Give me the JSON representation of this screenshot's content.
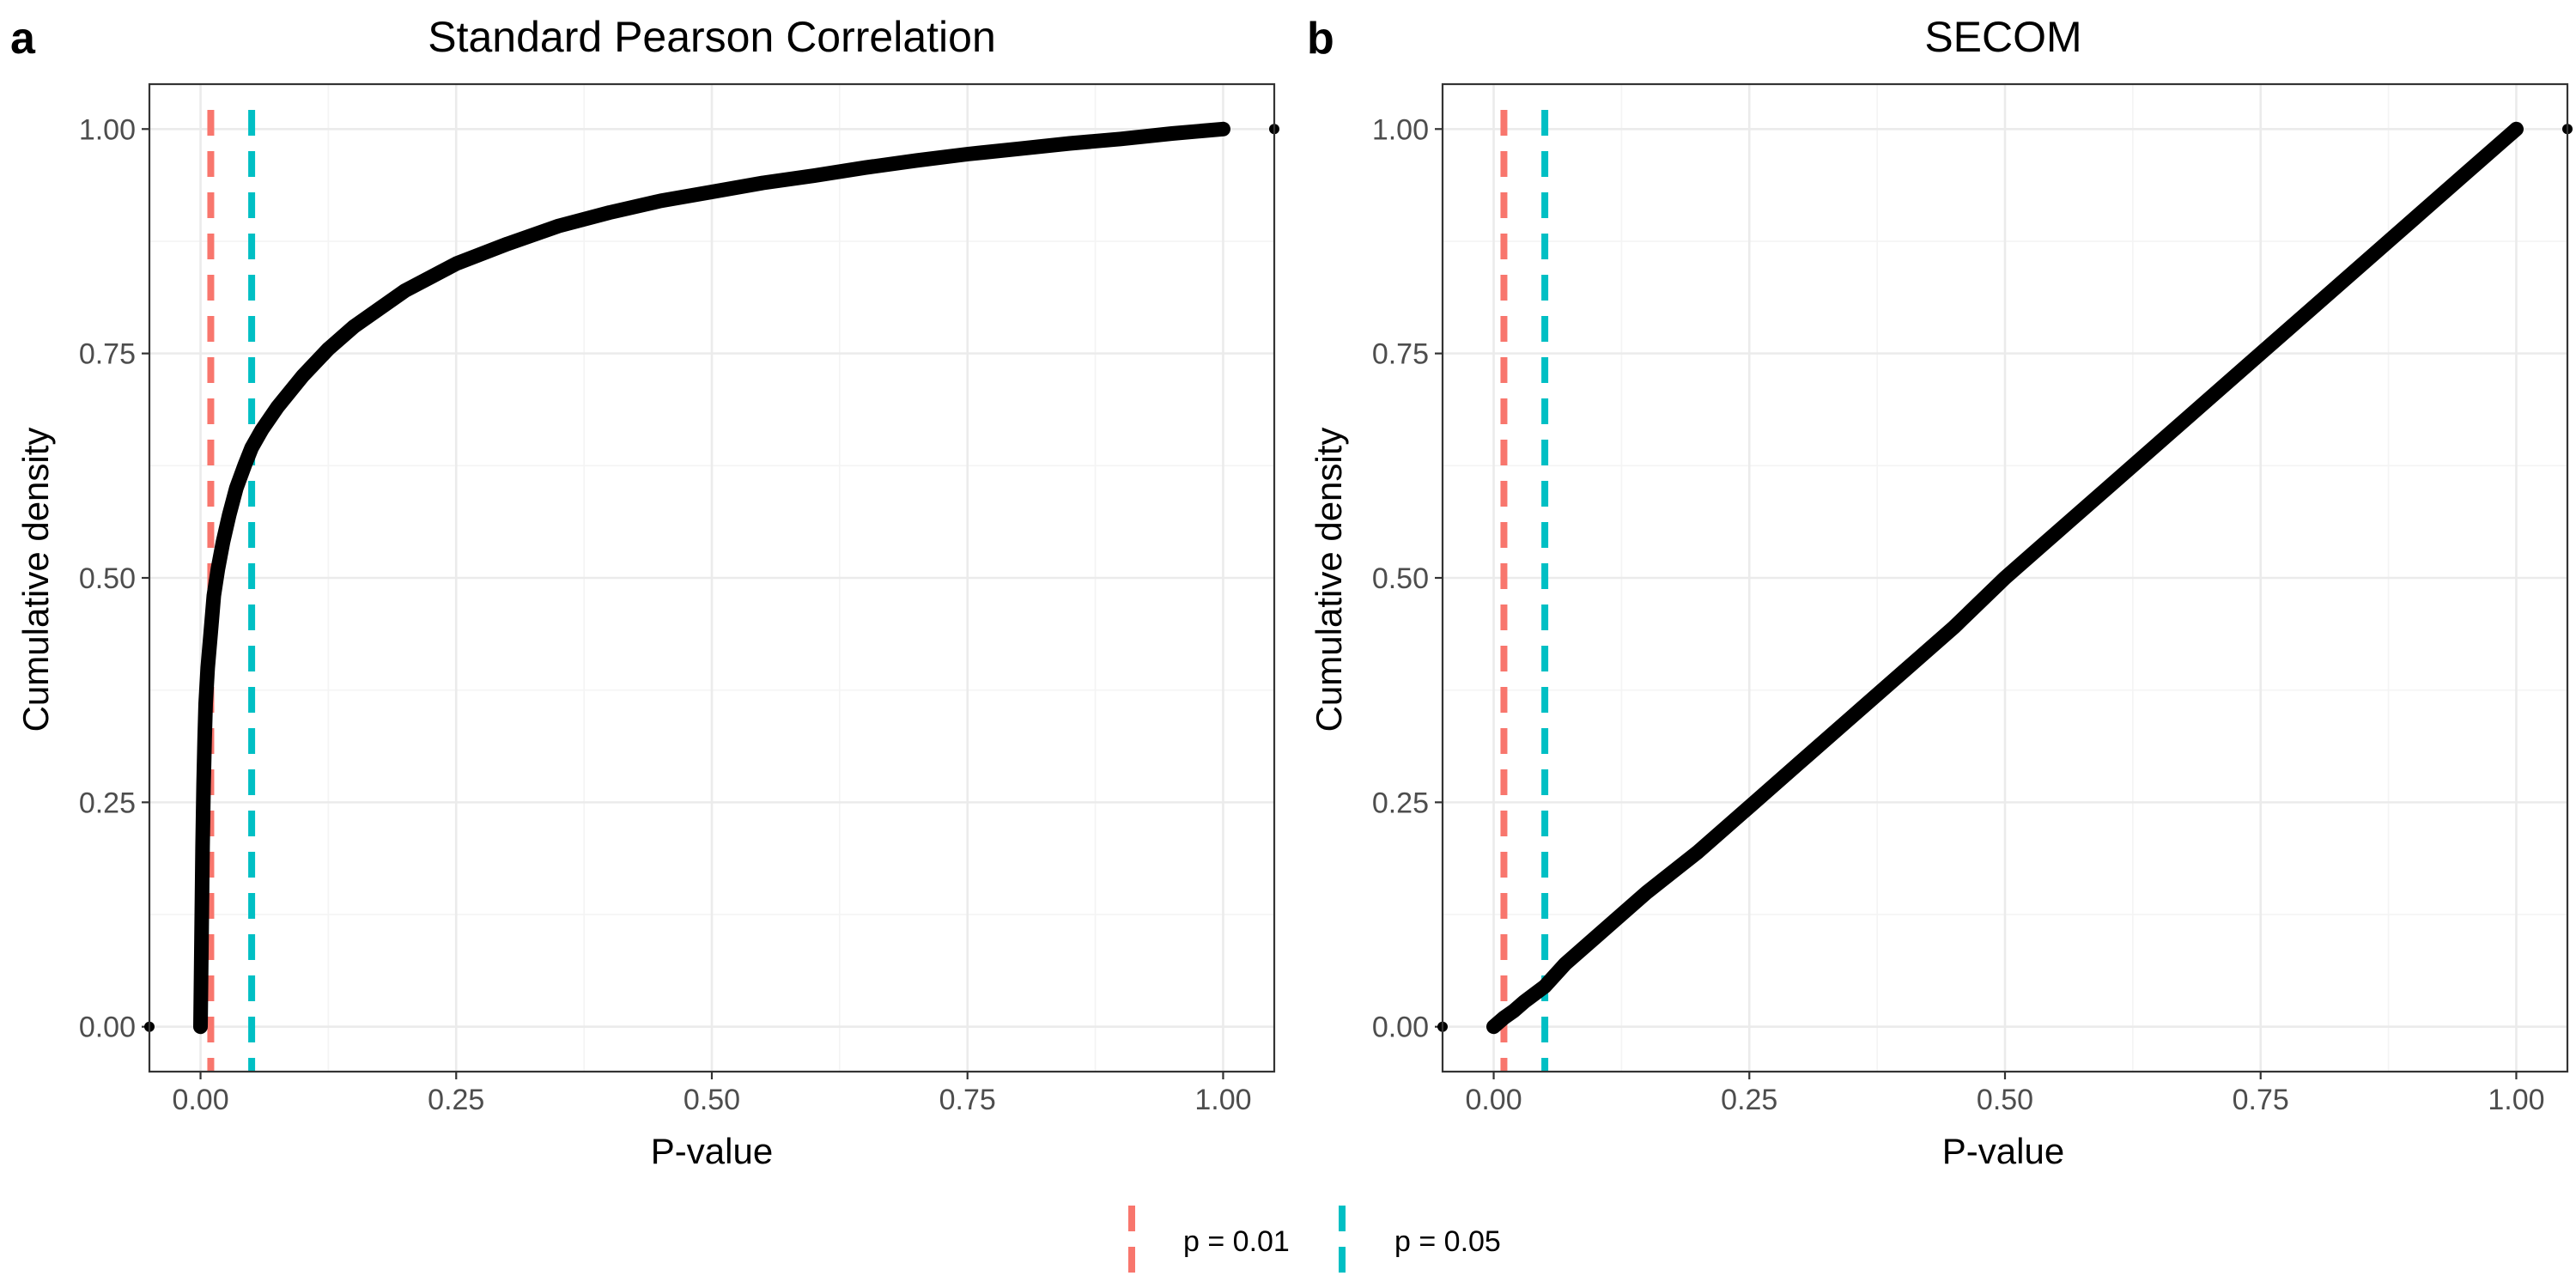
{
  "chart_data": [
    {
      "type": "line",
      "panel_tag": "a",
      "title": "Standard Pearson Correlation",
      "xlabel": "P-value",
      "ylabel": "Cumulative density",
      "xlim": [
        -0.05,
        1.05
      ],
      "ylim": [
        -0.05,
        1.05
      ],
      "x_ticks": [
        0,
        0.25,
        0.5,
        0.75,
        1
      ],
      "x_tick_labels": [
        "0.00",
        "0.25",
        "0.50",
        "0.75",
        "1.00"
      ],
      "y_ticks": [
        0,
        0.25,
        0.5,
        0.75,
        1
      ],
      "y_tick_labels": [
        "0.00",
        "0.25",
        "0.50",
        "0.75",
        "1.00"
      ],
      "grid": true,
      "series": [
        {
          "color": "#000000",
          "x": [
            0,
            0.001,
            0.002,
            0.003,
            0.004,
            0.005,
            0.007,
            0.01,
            0.013,
            0.017,
            0.022,
            0.028,
            0.035,
            0.043,
            0.05,
            0.06,
            0.075,
            0.1,
            0.125,
            0.15,
            0.2,
            0.25,
            0.3,
            0.35,
            0.4,
            0.45,
            0.5,
            0.55,
            0.6,
            0.65,
            0.7,
            0.75,
            0.8,
            0.85,
            0.9,
            0.95,
            1.0
          ],
          "y": [
            0.0,
            0.1,
            0.2,
            0.27,
            0.32,
            0.36,
            0.4,
            0.44,
            0.48,
            0.51,
            0.54,
            0.57,
            0.6,
            0.625,
            0.645,
            0.665,
            0.69,
            0.725,
            0.755,
            0.78,
            0.82,
            0.85,
            0.872,
            0.892,
            0.907,
            0.92,
            0.93,
            0.94,
            0.948,
            0.957,
            0.965,
            0.972,
            0.978,
            0.984,
            0.989,
            0.995,
            1.0
          ]
        }
      ],
      "stray_points": [
        {
          "x": -0.05,
          "y": 0.0
        },
        {
          "x": 1.05,
          "y": 1.0
        }
      ],
      "reference_lines": [
        {
          "x": 0.01,
          "label": "p = 0.01",
          "color": "#F8766D"
        },
        {
          "x": 0.05,
          "label": "p = 0.05",
          "color": "#00BFC4"
        }
      ]
    },
    {
      "type": "line",
      "panel_tag": "b",
      "title": "SECOM",
      "xlabel": "P-value",
      "ylabel": "Cumulative density",
      "xlim": [
        -0.05,
        1.05
      ],
      "ylim": [
        -0.05,
        1.05
      ],
      "x_ticks": [
        0,
        0.25,
        0.5,
        0.75,
        1
      ],
      "x_tick_labels": [
        "0.00",
        "0.25",
        "0.50",
        "0.75",
        "1.00"
      ],
      "y_ticks": [
        0,
        0.25,
        0.5,
        0.75,
        1
      ],
      "y_tick_labels": [
        "0.00",
        "0.25",
        "0.50",
        "0.75",
        "1.00"
      ],
      "grid": true,
      "series": [
        {
          "color": "#000000",
          "x": [
            0.0,
            0.01,
            0.02,
            0.03,
            0.05,
            0.07,
            0.1,
            0.15,
            0.2,
            0.25,
            0.3,
            0.35,
            0.4,
            0.45,
            0.5,
            0.55,
            0.6,
            0.65,
            0.7,
            0.75,
            0.8,
            0.85,
            0.9,
            0.95,
            1.0
          ],
          "y": [
            0.0,
            0.01,
            0.018,
            0.028,
            0.045,
            0.07,
            0.1,
            0.15,
            0.195,
            0.245,
            0.295,
            0.345,
            0.395,
            0.445,
            0.5,
            0.55,
            0.6,
            0.65,
            0.7,
            0.75,
            0.8,
            0.85,
            0.9,
            0.95,
            1.0
          ]
        }
      ],
      "stray_points": [
        {
          "x": -0.05,
          "y": 0.0
        },
        {
          "x": 1.05,
          "y": 1.0
        }
      ],
      "reference_lines": [
        {
          "x": 0.01,
          "label": "p = 0.01",
          "color": "#F8766D"
        },
        {
          "x": 0.05,
          "label": "p = 0.05",
          "color": "#00BFC4"
        }
      ]
    }
  ],
  "legend": {
    "position": "bottom",
    "items": [
      {
        "label": "p = 0.01",
        "color": "#F8766D"
      },
      {
        "label": "p = 0.05",
        "color": "#00BFC4"
      }
    ]
  }
}
